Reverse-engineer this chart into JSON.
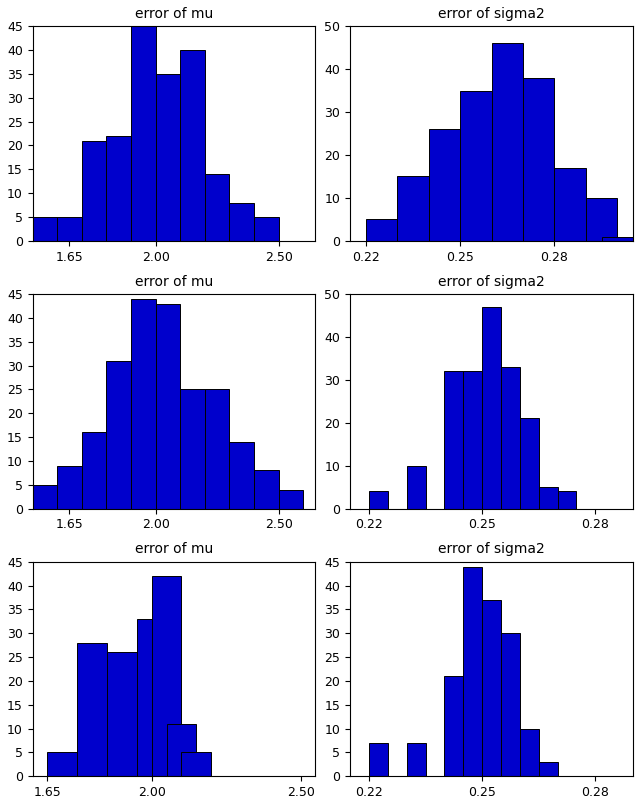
{
  "title_mu": "error of mu",
  "title_sigma2": "error of sigma2",
  "bar_color": "#0000CC",
  "edge_color": "black",
  "row1": {
    "mu": {
      "bin_left": [
        1.5,
        1.6,
        1.7,
        1.8,
        1.9,
        2.0,
        2.1,
        2.2,
        2.3,
        2.4,
        2.5
      ],
      "counts": [
        5,
        5,
        21,
        22,
        45,
        35,
        40,
        14,
        8,
        5,
        0
      ],
      "bin_width": 0.1,
      "xlim": [
        1.5,
        2.65
      ],
      "ylim": [
        0,
        45
      ],
      "xticks": [
        1.65,
        2.0,
        2.5
      ],
      "yticks": [
        0,
        5,
        10,
        15,
        20,
        25,
        30,
        35,
        40,
        45
      ]
    },
    "sigma2": {
      "bin_left": [
        0.22,
        0.23,
        0.24,
        0.25,
        0.26,
        0.27,
        0.28,
        0.29,
        0.295
      ],
      "counts": [
        5,
        15,
        26,
        35,
        46,
        38,
        17,
        10,
        1
      ],
      "bin_width": 0.01,
      "xlim": [
        0.215,
        0.305
      ],
      "ylim": [
        0,
        50
      ],
      "xticks": [
        0.22,
        0.25,
        0.28
      ],
      "yticks": [
        0,
        10,
        20,
        30,
        40,
        50
      ]
    }
  },
  "row2": {
    "mu": {
      "bin_left": [
        1.5,
        1.6,
        1.7,
        1.8,
        1.9,
        2.0,
        2.1,
        2.2,
        2.3,
        2.4,
        2.5
      ],
      "counts": [
        5,
        9,
        16,
        31,
        44,
        43,
        25,
        25,
        14,
        8,
        4
      ],
      "bin_width": 0.1,
      "xlim": [
        1.5,
        2.65
      ],
      "ylim": [
        0,
        45
      ],
      "xticks": [
        1.65,
        2.0,
        2.5
      ],
      "yticks": [
        0,
        5,
        10,
        15,
        20,
        25,
        30,
        35,
        40,
        45
      ]
    },
    "sigma2": {
      "bin_left": [
        0.22,
        0.23,
        0.24,
        0.245,
        0.25,
        0.255,
        0.26,
        0.265,
        0.27,
        0.275,
        0.28
      ],
      "counts": [
        4,
        10,
        32,
        32,
        47,
        33,
        21,
        5,
        4,
        0,
        0
      ],
      "bin_width": 0.005,
      "xlim": [
        0.215,
        0.29
      ],
      "ylim": [
        0,
        50
      ],
      "xticks": [
        0.22,
        0.25,
        0.28
      ],
      "yticks": [
        0,
        10,
        20,
        30,
        40,
        50
      ]
    }
  },
  "row3": {
    "mu": {
      "bin_left": [
        1.65,
        1.75,
        1.85,
        1.95,
        2.0,
        2.05,
        2.1,
        2.15,
        2.25,
        2.35
      ],
      "counts": [
        5,
        28,
        26,
        33,
        42,
        11,
        5,
        0,
        0,
        0
      ],
      "bin_width": 0.1,
      "xlim": [
        1.6,
        2.55
      ],
      "ylim": [
        0,
        45
      ],
      "xticks": [
        1.65,
        2.0,
        2.5
      ],
      "yticks": [
        0,
        5,
        10,
        15,
        20,
        25,
        30,
        35,
        40,
        45
      ]
    },
    "sigma2": {
      "bin_left": [
        0.22,
        0.23,
        0.24,
        0.245,
        0.25,
        0.255,
        0.26,
        0.265,
        0.27,
        0.275
      ],
      "counts": [
        7,
        7,
        21,
        44,
        37,
        30,
        10,
        3,
        0,
        0
      ],
      "bin_width": 0.005,
      "xlim": [
        0.215,
        0.29
      ],
      "ylim": [
        0,
        45
      ],
      "xticks": [
        0.22,
        0.25,
        0.28
      ],
      "yticks": [
        0,
        5,
        10,
        15,
        20,
        25,
        30,
        35,
        40,
        45
      ]
    }
  }
}
